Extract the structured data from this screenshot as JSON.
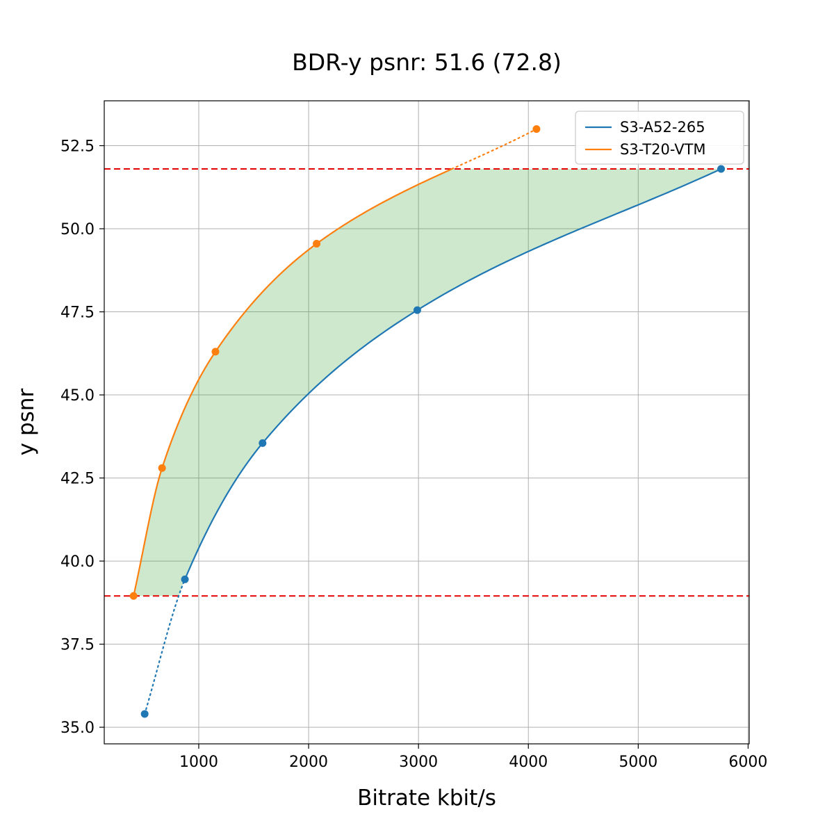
{
  "title": "BDR-y psnr: 51.6 (72.8)",
  "chart_data": {
    "type": "line",
    "title": "BDR-y psnr: 51.6 (72.8)",
    "xlabel": "Bitrate kbit/s",
    "ylabel": "y psnr",
    "xlim": [
      140,
      6010
    ],
    "ylim": [
      34.5,
      53.85
    ],
    "xticks": [
      1000,
      2000,
      3000,
      4000,
      5000,
      6000
    ],
    "yticks": [
      35.0,
      37.5,
      40.0,
      42.5,
      45.0,
      47.5,
      50.0,
      52.5
    ],
    "grid": true,
    "grid_color": "#b0b0b0",
    "legend_position": "upper right",
    "series": [
      {
        "name": "S3-A52-265",
        "color": "#1f77b4",
        "marker": "circle",
        "x": [
          508,
          874,
          1581,
          2989,
          5754
        ],
        "y": [
          35.4,
          39.45,
          43.55,
          47.55,
          51.8
        ],
        "dotted_segment": "start"
      },
      {
        "name": "S3-T20-VTM",
        "color": "#ff7f0e",
        "marker": "circle",
        "x": [
          407,
          666,
          1152,
          2073,
          4074
        ],
        "y": [
          38.95,
          42.8,
          46.3,
          49.55,
          53.0
        ],
        "dotted_segment": "end"
      }
    ],
    "reference_lines": {
      "color": "#e50000",
      "style": "dashed",
      "y_values": [
        38.95,
        51.8
      ]
    },
    "shaded_region": {
      "color": "#2ca02c",
      "opacity": 0.24,
      "description": "area between the two rate-distortion curves clipped between the two reference lines"
    }
  }
}
